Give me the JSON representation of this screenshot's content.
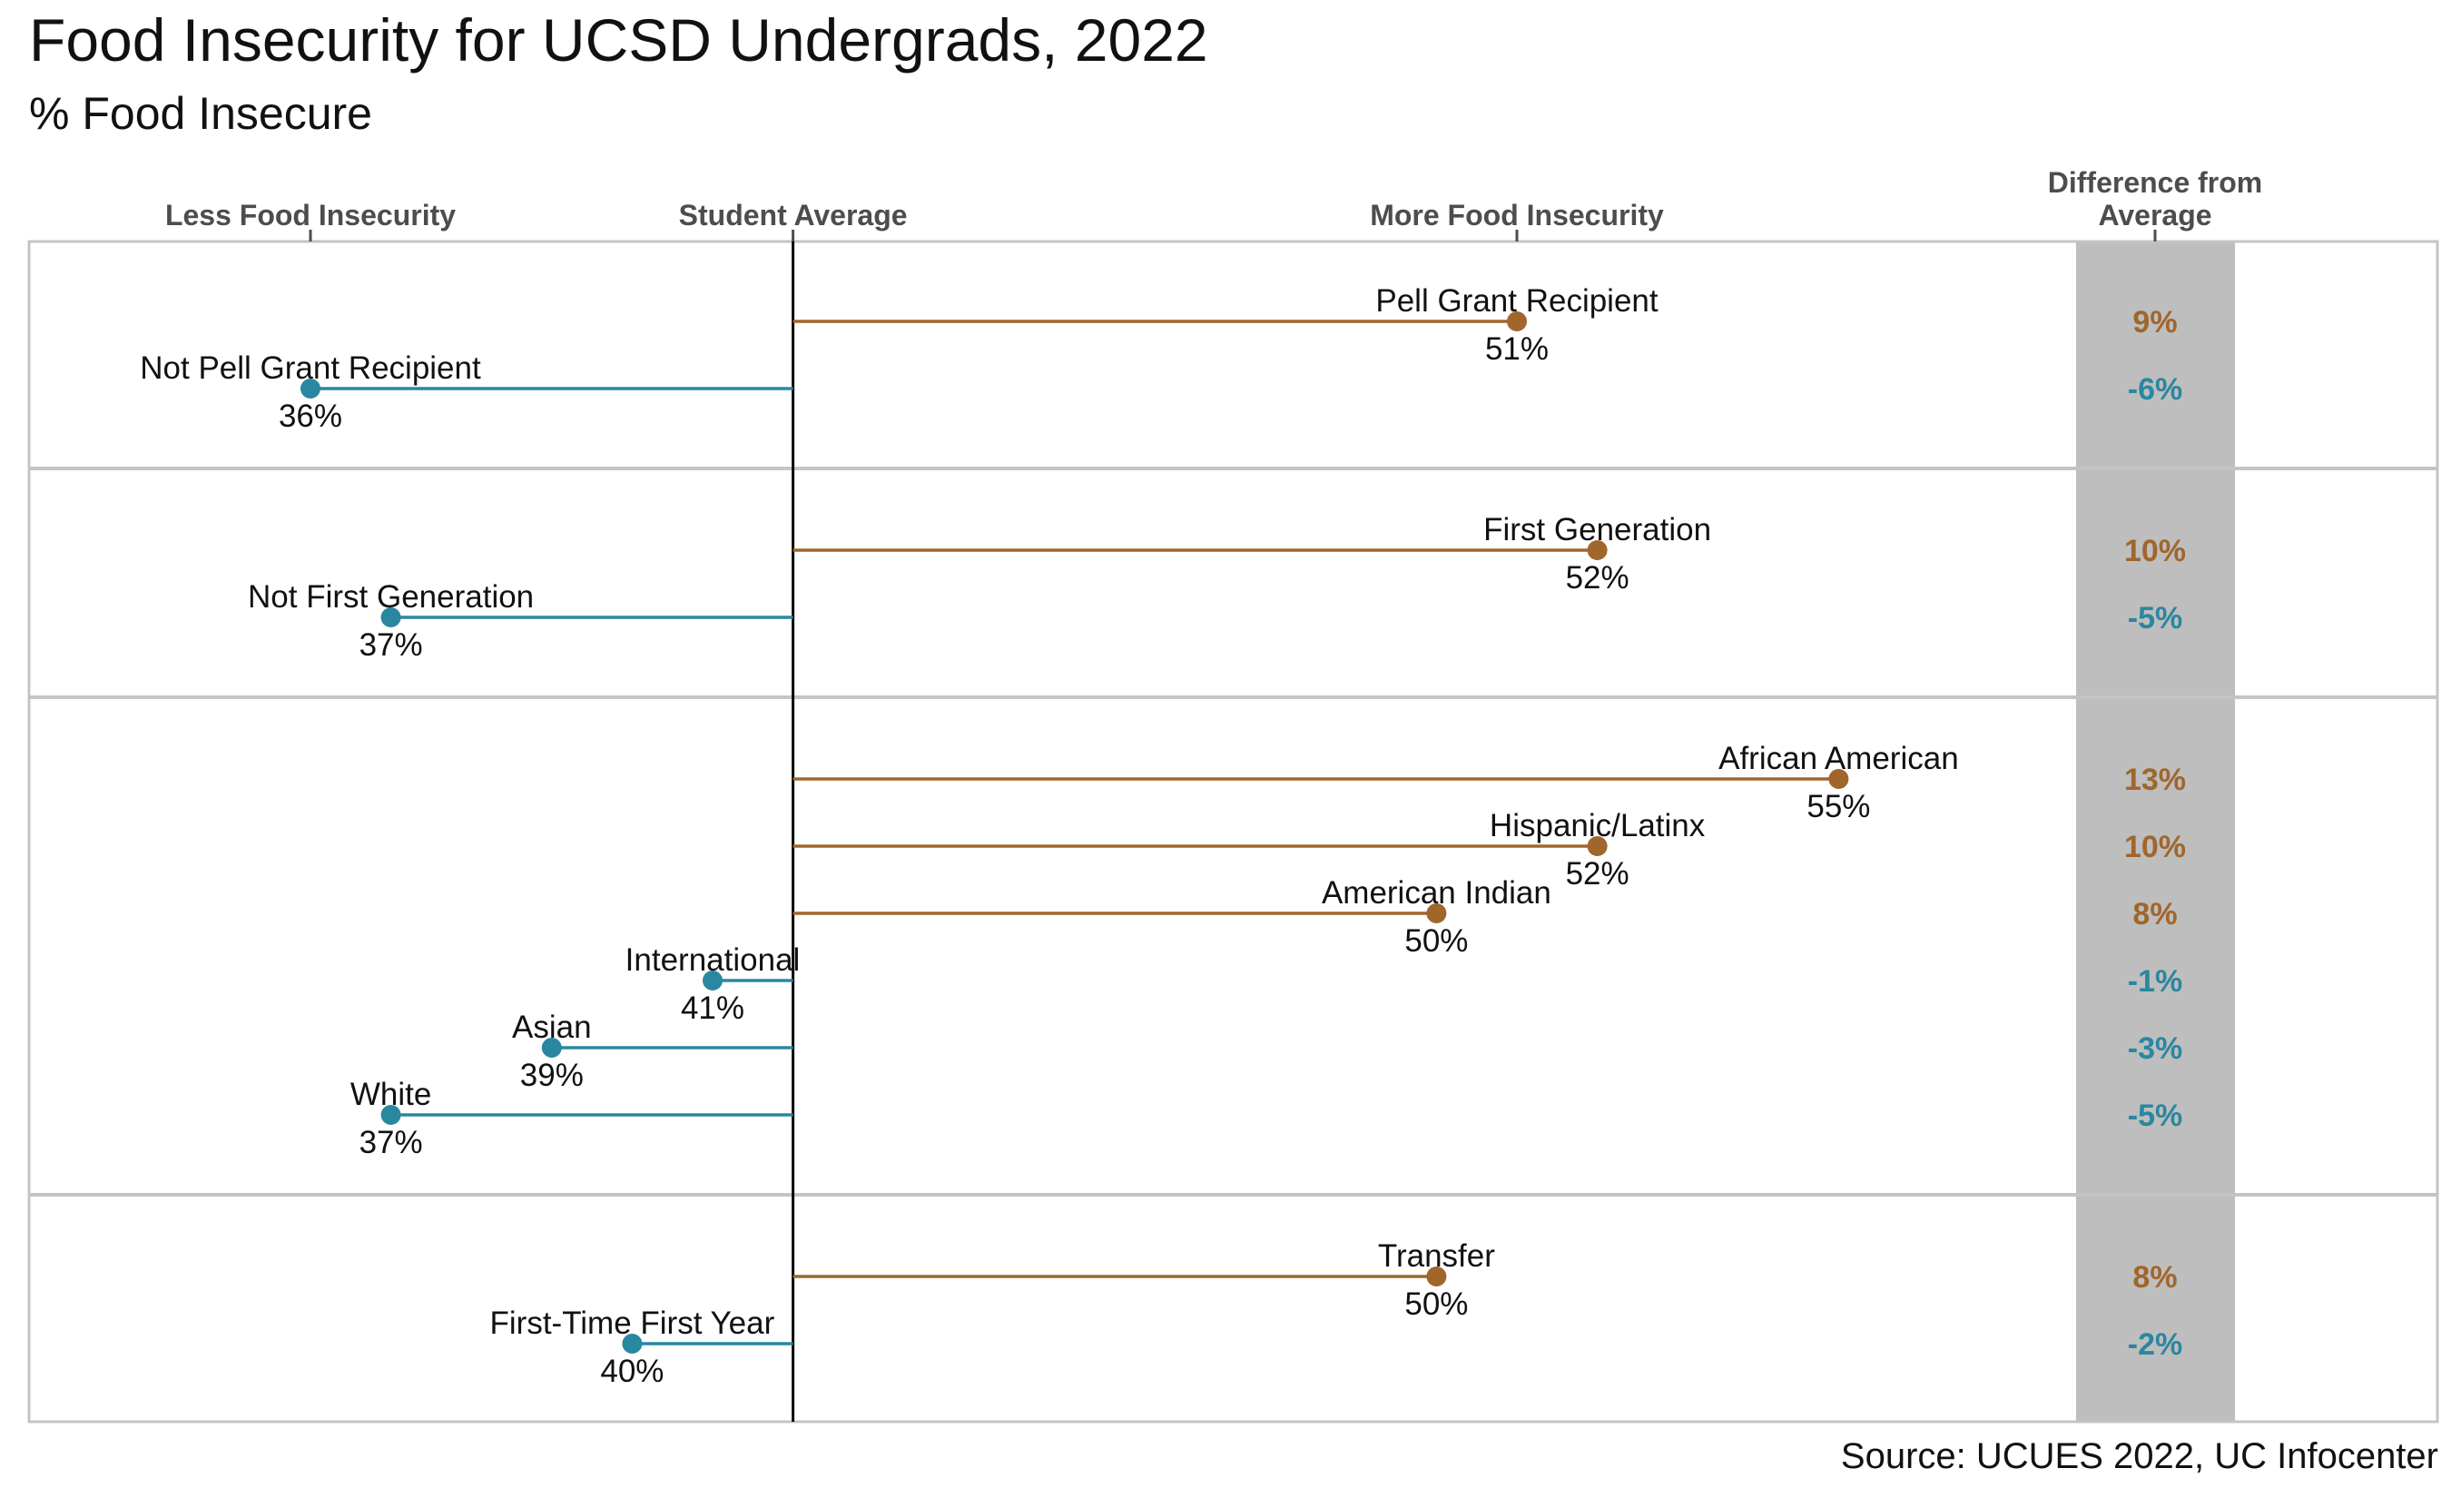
{
  "title": "Food Insecurity for UCSD Undergrads, 2022",
  "subtitle": "% Food Insecure",
  "source": "Source: UCUES 2022, UC Infocenter",
  "colors": {
    "above": "#A0662B",
    "below": "#2A87A0",
    "diff_band": "#BEBEBE",
    "average_line": "#000000"
  },
  "chart_data": {
    "type": "lollipop",
    "average": 42,
    "xlim": [
      32,
      59
    ],
    "axis_labels": [
      {
        "text": "Less Food Insecurity",
        "x": 36
      },
      {
        "text": "Student Average",
        "x": 42
      },
      {
        "text": "More Food Insecurity",
        "x": 51
      }
    ],
    "diff_header": [
      "Difference from",
      "Average"
    ],
    "panels": [
      {
        "rows": [
          {
            "label": "Pell Grant Recipient",
            "value": 51,
            "value_label": "51%",
            "diff": "9%"
          },
          {
            "label": "Not Pell Grant Recipient",
            "value": 36,
            "value_label": "36%",
            "diff": "-6%"
          }
        ]
      },
      {
        "rows": [
          {
            "label": "First Generation",
            "value": 52,
            "value_label": "52%",
            "diff": "10%"
          },
          {
            "label": "Not First Generation",
            "value": 37,
            "value_label": "37%",
            "diff": "-5%"
          }
        ]
      },
      {
        "rows": [
          {
            "label": "African American",
            "value": 55,
            "value_label": "55%",
            "diff": "13%"
          },
          {
            "label": "Hispanic/Latinx",
            "value": 52,
            "value_label": "52%",
            "diff": "10%"
          },
          {
            "label": "American Indian",
            "value": 50,
            "value_label": "50%",
            "diff": "8%"
          },
          {
            "label": "International",
            "value": 41,
            "value_label": "41%",
            "diff": "-1%"
          },
          {
            "label": "Asian",
            "value": 39,
            "value_label": "39%",
            "diff": "-3%"
          },
          {
            "label": "White",
            "value": 37,
            "value_label": "37%",
            "diff": "-5%"
          }
        ]
      },
      {
        "rows": [
          {
            "label": "Transfer",
            "value": 50,
            "value_label": "50%",
            "diff": "8%"
          },
          {
            "label": "First-Time First Year",
            "value": 40,
            "value_label": "40%",
            "diff": "-2%"
          }
        ]
      }
    ]
  }
}
